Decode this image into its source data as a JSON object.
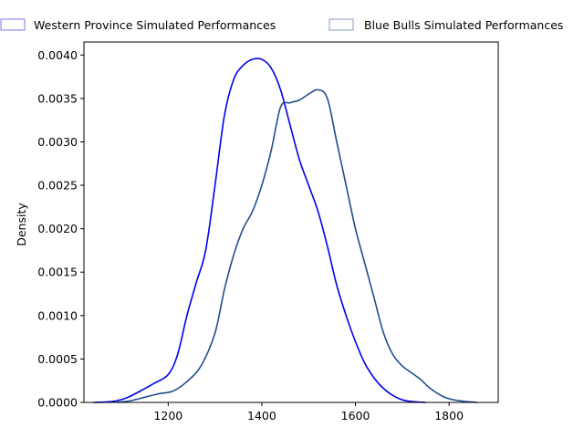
{
  "chart_data": {
    "type": "line",
    "title": "",
    "xlabel": "",
    "ylabel": "Density",
    "xlim": [
      1020,
      1905
    ],
    "ylim": [
      0,
      0.00415
    ],
    "xticks": [
      1200,
      1400,
      1600,
      1800
    ],
    "xtick_labels": [
      "1200",
      "1400",
      "1600",
      "1800"
    ],
    "yticks": [
      0,
      0.0005,
      0.001,
      0.0015,
      0.002,
      0.0025,
      0.003,
      0.0035,
      0.004
    ],
    "ytick_labels": [
      "0.0000",
      "0.0005",
      "0.0010",
      "0.0015",
      "0.0020",
      "0.0025",
      "0.0030",
      "0.0035",
      "0.0040"
    ],
    "grid": false,
    "legend_position": "top",
    "series": [
      {
        "name": "Western Province Simulated Performances",
        "color": "#0000ee",
        "x": [
          1040,
          1080,
          1110,
          1140,
          1170,
          1200,
          1220,
          1240,
          1260,
          1280,
          1300,
          1320,
          1340,
          1360,
          1380,
          1400,
          1420,
          1440,
          1460,
          1480,
          1500,
          1520,
          1540,
          1560,
          1580,
          1600,
          1620,
          1640,
          1660,
          1680,
          1700,
          1720,
          1750
        ],
        "y": [
          0.0,
          1e-05,
          5e-05,
          0.00013,
          0.00022,
          0.00032,
          0.00055,
          0.001,
          0.00138,
          0.00175,
          0.0025,
          0.0033,
          0.00372,
          0.00388,
          0.00395,
          0.00395,
          0.00385,
          0.0036,
          0.0032,
          0.0028,
          0.0025,
          0.0022,
          0.0018,
          0.00135,
          0.001,
          0.0007,
          0.00045,
          0.00028,
          0.00016,
          8e-05,
          3e-05,
          1e-05,
          0.0
        ]
      },
      {
        "name": "Blue Bulls Simulated Performances",
        "color": "#1f4e8c",
        "x": [
          1090,
          1120,
          1150,
          1180,
          1210,
          1240,
          1270,
          1300,
          1320,
          1340,
          1360,
          1380,
          1400,
          1420,
          1440,
          1460,
          1480,
          1500,
          1520,
          1540,
          1560,
          1580,
          1600,
          1620,
          1640,
          1660,
          1680,
          1700,
          1720,
          1740,
          1760,
          1790,
          1820,
          1860
        ],
        "y": [
          0.0,
          2e-05,
          6e-05,
          0.0001,
          0.00013,
          0.00024,
          0.00042,
          0.0008,
          0.0013,
          0.0017,
          0.002,
          0.0022,
          0.0025,
          0.0029,
          0.0034,
          0.00345,
          0.00348,
          0.00355,
          0.0036,
          0.0035,
          0.003,
          0.0025,
          0.002,
          0.0016,
          0.0012,
          0.0008,
          0.00055,
          0.00042,
          0.00034,
          0.00026,
          0.00016,
          6e-05,
          2e-05,
          0.0
        ]
      }
    ]
  }
}
